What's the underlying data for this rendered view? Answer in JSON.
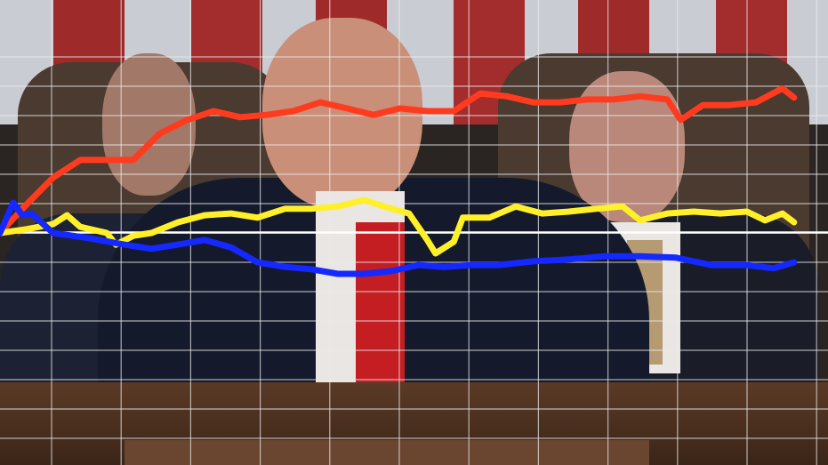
{
  "chart_data": {
    "type": "line",
    "title": "",
    "xlabel": "",
    "ylabel": "",
    "xlim": [
      0,
      100
    ],
    "ylim": [
      0,
      100
    ],
    "grid": true,
    "legend": "none",
    "series": [
      {
        "color": "#ff3b1f",
        "x": [
          0,
          3.2,
          6.4,
          9.7,
          12.9,
          16.1,
          19.3,
          22.6,
          25.8,
          29.0,
          32.2,
          35.4,
          38.7,
          41.9,
          45.1,
          48.3,
          51.6,
          54.8,
          58.0,
          61.2,
          64.4,
          67.7,
          70.9,
          74.1,
          77.3,
          80.6,
          82.2,
          84.9,
          88.1,
          91.3,
          94.5,
          95.9
        ],
        "y": [
          49.9,
          56.0,
          61.8,
          65.6,
          65.6,
          65.6,
          71.3,
          74.2,
          76.1,
          74.8,
          75.3,
          76.1,
          78.0,
          76.7,
          75.3,
          76.7,
          76.1,
          76.1,
          79.9,
          79.3,
          78.0,
          78.0,
          78.6,
          78.6,
          79.3,
          78.6,
          74.2,
          77.4,
          77.4,
          78.0,
          81.0,
          79.0
        ]
      },
      {
        "color": "#fff02a",
        "x": [
          0,
          3.2,
          6.4,
          8.1,
          9.7,
          12.9,
          14.0,
          16.1,
          18.3,
          21.5,
          24.7,
          27.9,
          31.1,
          34.4,
          37.6,
          40.8,
          44.0,
          47.3,
          49.4,
          51.6,
          52.6,
          54.8,
          55.9,
          59.1,
          62.3,
          65.5,
          68.7,
          72.0,
          75.2,
          77.3,
          80.6,
          83.8,
          87.0,
          90.2,
          92.4,
          94.5,
          95.9
        ],
        "y": [
          49.9,
          50.7,
          51.8,
          53.7,
          51.2,
          49.9,
          47.4,
          49.3,
          49.9,
          52.2,
          53.7,
          54.1,
          53.2,
          55.1,
          55.1,
          55.6,
          57.0,
          55.1,
          54.1,
          48.4,
          45.5,
          48.0,
          53.2,
          53.2,
          55.6,
          54.1,
          54.5,
          55.1,
          55.6,
          52.6,
          54.1,
          54.5,
          54.1,
          54.5,
          52.6,
          54.1,
          52.2
        ]
      },
      {
        "color": "#1428ff",
        "x": [
          0,
          1.6,
          2.7,
          3.8,
          6.4,
          10.7,
          15.0,
          18.3,
          21.5,
          24.7,
          27.9,
          31.1,
          34.4,
          37.6,
          40.8,
          44.0,
          47.3,
          50.5,
          53.7,
          56.9,
          60.2,
          64.4,
          68.7,
          73.0,
          77.3,
          81.6,
          85.9,
          90.2,
          93.4,
          95.9
        ],
        "y": [
          49.9,
          56.4,
          53.7,
          54.1,
          49.9,
          48.8,
          47.4,
          46.5,
          47.4,
          48.4,
          46.8,
          43.6,
          42.6,
          42.1,
          41.1,
          41.1,
          41.7,
          43.0,
          42.6,
          43.0,
          43.0,
          43.8,
          44.2,
          44.9,
          44.9,
          44.6,
          43.0,
          43.0,
          42.3,
          43.6
        ]
      }
    ]
  }
}
